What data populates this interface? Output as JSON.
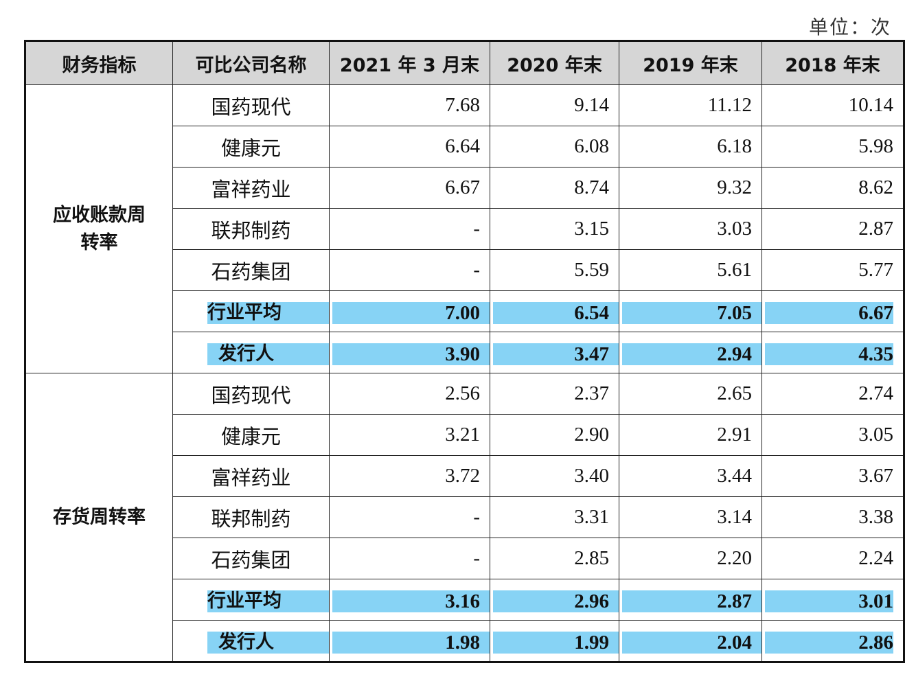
{
  "header": {
    "unit": "单位：次"
  },
  "table": {
    "columns": [
      "财务指标",
      "可比公司名称",
      "2021 年 3 月末",
      "2020 年末",
      "2019 年末",
      "2018 年末"
    ],
    "sections": [
      {
        "label": "应收账款周转率",
        "rows": [
          {
            "name": "国药现代",
            "values": [
              "7.68",
              "9.14",
              "11.12",
              "10.14"
            ]
          },
          {
            "name": "健康元",
            "values": [
              "6.64",
              "6.08",
              "6.18",
              "5.98"
            ]
          },
          {
            "name": "富祥药业",
            "values": [
              "6.67",
              "8.74",
              "9.32",
              "8.62"
            ]
          },
          {
            "name": "联邦制药",
            "values": [
              "-",
              "3.15",
              "3.03",
              "2.87"
            ]
          },
          {
            "name": "石药集团",
            "values": [
              "-",
              "5.59",
              "5.61",
              "5.77"
            ]
          },
          {
            "name": "行业平均",
            "values": [
              "7.00",
              "6.54",
              "7.05",
              "6.67"
            ]
          },
          {
            "name": "发行人",
            "values": [
              "3.90",
              "3.47",
              "2.94",
              "4.35"
            ]
          }
        ]
      },
      {
        "label": "存货周转率",
        "rows": [
          {
            "name": "国药现代",
            "values": [
              "2.56",
              "2.37",
              "2.65",
              "2.74"
            ]
          },
          {
            "name": "健康元",
            "values": [
              "3.21",
              "2.90",
              "2.91",
              "3.05"
            ]
          },
          {
            "name": "富祥药业",
            "values": [
              "3.72",
              "3.40",
              "3.44",
              "3.67"
            ]
          },
          {
            "name": "联邦制药",
            "values": [
              "-",
              "3.31",
              "3.14",
              "3.38"
            ]
          },
          {
            "name": "石药集团",
            "values": [
              "-",
              "2.85",
              "2.20",
              "2.24"
            ]
          },
          {
            "name": "行业平均",
            "values": [
              "3.16",
              "2.96",
              "2.87",
              "3.01"
            ]
          },
          {
            "name": "发行人",
            "values": [
              "1.98",
              "1.99",
              "2.04",
              "2.86"
            ]
          }
        ]
      }
    ]
  }
}
